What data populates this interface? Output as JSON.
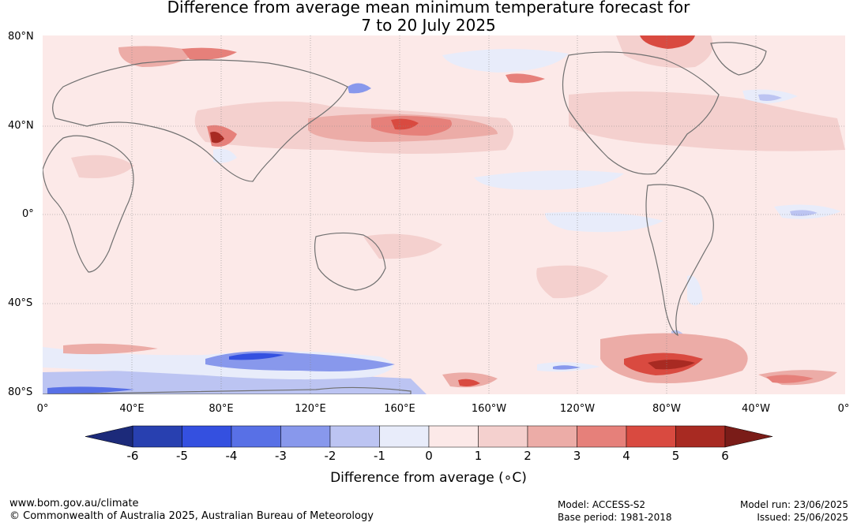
{
  "title": {
    "line1": "Difference from average mean minimum temperature forecast for",
    "line2": "7 to 20 July 2025"
  },
  "map": {
    "lat_labels": [
      "80°N",
      "40°N",
      "0°",
      "40°S",
      "80°S"
    ],
    "lon_labels": [
      "0°",
      "40°E",
      "80°E",
      "120°E",
      "160°E",
      "160°W",
      "120°W",
      "80°W",
      "40°W",
      "0°"
    ]
  },
  "colorbar": {
    "title": "Difference from average (∘C)",
    "ticks": [
      "-6",
      "-5",
      "-4",
      "-3",
      "-2",
      "-1",
      "0",
      "1",
      "2",
      "3",
      "4",
      "5",
      "6"
    ],
    "colors": [
      "#2840b0",
      "#3450e0",
      "#5870e6",
      "#8898ec",
      "#bcc4f2",
      "#e8ecfa",
      "#fce9e8",
      "#f4d0ce",
      "#ecaca7",
      "#e6807a",
      "#d94a40",
      "#a82a22"
    ],
    "extend_low_color": "#1c2a7a",
    "extend_high_color": "#7a1c18"
  },
  "footer": {
    "url": "www.bom.gov.au/climate",
    "copyright": "© Commonwealth of Australia 2025, Australian Bureau of Meteorology",
    "model": "Model: ACCESS-S2",
    "base_period": "Base period: 1981-2018",
    "model_run": "Model run: 23/06/2025",
    "issued": "Issued: 25/06/2025"
  }
}
